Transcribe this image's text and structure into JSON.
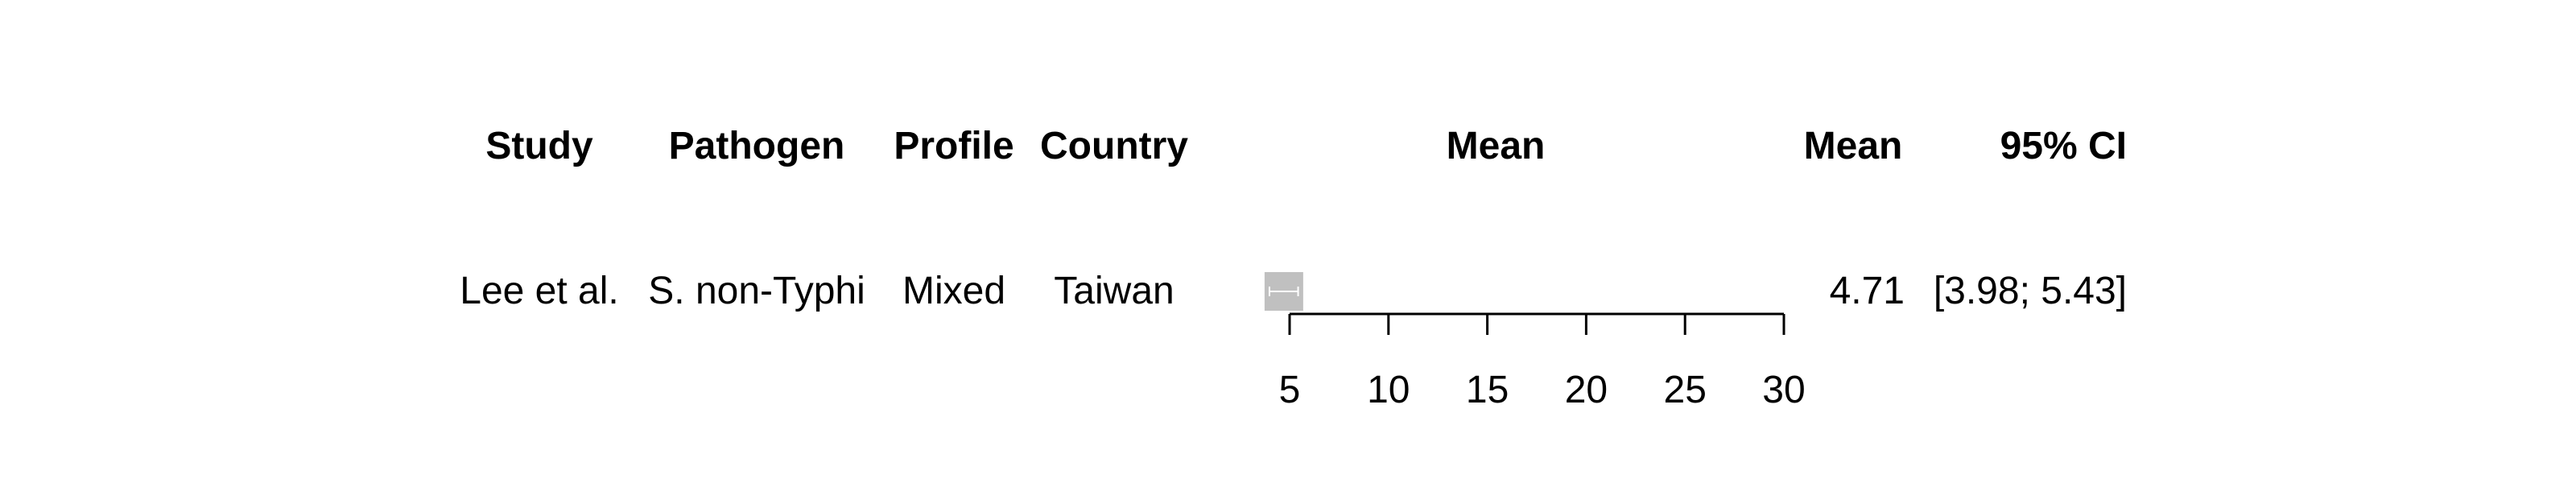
{
  "headers": {
    "study": "Study",
    "pathogen": "Pathogen",
    "profile": "Profile",
    "country": "Country",
    "plot": "Mean",
    "mean": "Mean",
    "ci": "95% CI"
  },
  "row": {
    "study": "Lee et al.",
    "pathogen": "S. non-Typhi",
    "profile": "Mixed",
    "country": "Taiwan",
    "mean": "4.71",
    "ci": "[3.98; 5.43]"
  },
  "chart_data": {
    "type": "forest",
    "studies": [
      {
        "name": "Lee et al.",
        "mean": 4.71,
        "lower": 3.98,
        "upper": 5.43
      }
    ],
    "xlim": [
      5,
      30
    ],
    "xticks": [
      5,
      10,
      15,
      20,
      25,
      30
    ],
    "colors": {
      "box": "#c0c0c0",
      "ci_line": "#ffffff",
      "axis": "#000000"
    }
  }
}
